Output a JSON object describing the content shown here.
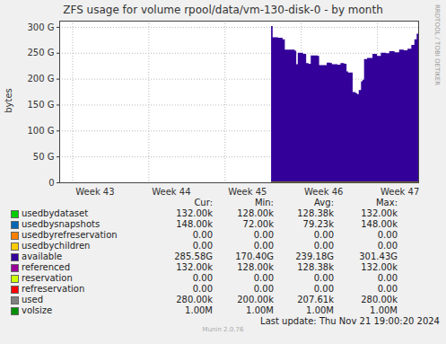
{
  "chart_data": {
    "type": "line",
    "title": "ZFS usage for volume rpool/data/vm-130-disk-0 - by month",
    "y_label": "bytes",
    "grid": true,
    "xlim": [
      42.83,
      47.54
    ],
    "xticks": [
      {
        "value": 43,
        "label": "Week 43"
      },
      {
        "value": 44,
        "label": "Week 44"
      },
      {
        "value": 45,
        "label": "Week 45"
      },
      {
        "value": 46,
        "label": "Week 46"
      },
      {
        "value": 47,
        "label": "Week 47"
      }
    ],
    "ylim": [
      0,
      312000000000
    ],
    "yticks": [
      0,
      {
        "value": 50000000000,
        "label": "50 G"
      },
      {
        "value": 100000000000,
        "label": "100 G"
      },
      {
        "value": 150000000000,
        "label": "150 G"
      },
      {
        "value": 200000000000,
        "label": "200 G"
      },
      {
        "value": 250000000000,
        "label": "250 G"
      },
      {
        "value": 300000000000,
        "label": "300 G"
      }
    ],
    "x": [
      45.61,
      45.63,
      45.7,
      45.76,
      45.79,
      45.88,
      45.92,
      45.94,
      45.96,
      46.03,
      46.07,
      46.1,
      46.13,
      46.22,
      46.24,
      46.33,
      46.34,
      46.39,
      46.41,
      46.48,
      46.52,
      46.57,
      46.6,
      46.62,
      46.68,
      46.72,
      46.74,
      46.76,
      46.79,
      46.81,
      46.83,
      46.87,
      46.9,
      46.94,
      47.0,
      47.05,
      47.12,
      47.16,
      47.23,
      47.29,
      47.35,
      47.4,
      47.45,
      47.49,
      47.52,
      47.54
    ],
    "stats_columns": [
      "Cur:",
      "Min:",
      "Avg:",
      "Max:"
    ],
    "series": [
      {
        "name": "usedbydataset",
        "color": "#00cc00",
        "x": [
          45.61,
          47.54
        ],
        "values": [
          128000,
          132000
        ],
        "stats": [
          "132.00k",
          "128.00k",
          "128.38k",
          "132.00k"
        ]
      },
      {
        "name": "usedbysnapshots",
        "color": "#0066b3",
        "x": [
          45.61,
          47.54
        ],
        "values": [
          72000,
          148000
        ],
        "stats": [
          "148.00k",
          "72.00k",
          "79.23k",
          "148.00k"
        ]
      },
      {
        "name": "usedbyrefreservation",
        "color": "#ff8000",
        "x": [
          45.61,
          47.54
        ],
        "values": [
          0,
          0
        ],
        "stats": [
          "0.00",
          "0.00",
          "0.00",
          "0.00"
        ]
      },
      {
        "name": "usedbychildren",
        "color": "#ffcc00",
        "x": [
          45.61,
          47.54
        ],
        "values": [
          0,
          0
        ],
        "stats": [
          "0.00",
          "0.00",
          "0.00",
          "0.00"
        ]
      },
      {
        "name": "available",
        "color": "#330099",
        "type": "area",
        "values": [
          301430000000,
          280000000000,
          279000000000,
          276000000000,
          256000000000,
          256000000000,
          254000000000,
          228000000000,
          250000000000,
          248000000000,
          230000000000,
          229000000000,
          245000000000,
          244000000000,
          226000000000,
          226000000000,
          231000000000,
          230000000000,
          228000000000,
          227000000000,
          230000000000,
          229000000000,
          214000000000,
          212000000000,
          174000000000,
          172000000000,
          170400000000,
          178000000000,
          195000000000,
          198000000000,
          238000000000,
          240000000000,
          240000000000,
          248000000000,
          244000000000,
          250000000000,
          249000000000,
          253000000000,
          251000000000,
          256000000000,
          255000000000,
          258000000000,
          265000000000,
          276000000000,
          287000000000,
          285580000000
        ],
        "stats": [
          "285.58G",
          "170.40G",
          "239.18G",
          "301.43G"
        ]
      },
      {
        "name": "referenced",
        "color": "#990099",
        "x": [
          45.61,
          47.54
        ],
        "values": [
          128000,
          132000
        ],
        "stats": [
          "132.00k",
          "128.00k",
          "128.38k",
          "132.00k"
        ]
      },
      {
        "name": "reservation",
        "color": "#ccff00",
        "x": [
          45.61,
          47.54
        ],
        "values": [
          0,
          0
        ],
        "stats": [
          "0.00",
          "0.00",
          "0.00",
          "0.00"
        ]
      },
      {
        "name": "refreservation",
        "color": "#ff0000",
        "x": [
          45.61,
          47.54
        ],
        "values": [
          0,
          0
        ],
        "stats": [
          "0.00",
          "0.00",
          "0.00",
          "0.00"
        ]
      },
      {
        "name": "used",
        "color": "#808080",
        "x": [
          45.61,
          47.54
        ],
        "values": [
          200000,
          280000
        ],
        "stats": [
          "280.00k",
          "200.00k",
          "207.61k",
          "280.00k"
        ]
      },
      {
        "name": "volsize",
        "color": "#008f00",
        "x": [
          45.61,
          47.54
        ],
        "values": [
          1000000,
          1000000
        ],
        "stats": [
          "1.00M",
          "1.00M",
          "1.00M",
          "1.00M"
        ]
      }
    ],
    "last_update": "Last update: Thu Nov 21 19:00:20 2024",
    "footer": "Munin 2.0.76",
    "watermark": "RRDTOOL / TOBI OETIKER"
  }
}
